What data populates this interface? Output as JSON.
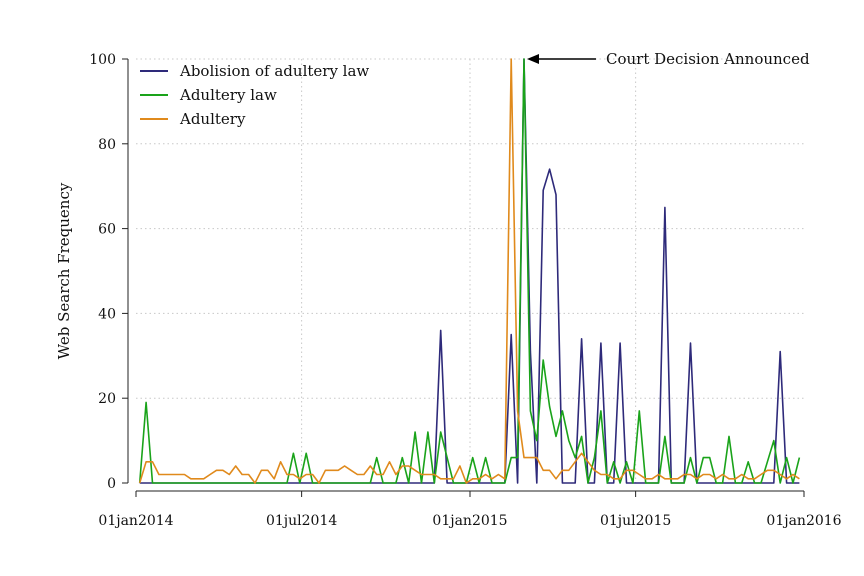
{
  "chart_data": {
    "type": "line",
    "title": "",
    "xlabel": "",
    "ylabel": "Web Search Frequency",
    "xlim": [
      "2014-01-01",
      "2016-01-01"
    ],
    "ylim": [
      0,
      100
    ],
    "x_ticks": [
      "01jan2014",
      "01jul2014",
      "01jan2015",
      "01jul2015",
      "01jan2016"
    ],
    "y_ticks": [
      0,
      20,
      40,
      60,
      80,
      100
    ],
    "grid": true,
    "legend_position": "top-left",
    "x": [
      "2014-01-05",
      "2014-01-12",
      "2014-01-19",
      "2014-01-26",
      "2014-02-02",
      "2014-02-09",
      "2014-02-16",
      "2014-02-23",
      "2014-03-02",
      "2014-03-09",
      "2014-03-16",
      "2014-03-23",
      "2014-03-30",
      "2014-04-06",
      "2014-04-13",
      "2014-04-20",
      "2014-04-27",
      "2014-05-04",
      "2014-05-11",
      "2014-05-18",
      "2014-05-25",
      "2014-06-01",
      "2014-06-08",
      "2014-06-15",
      "2014-06-22",
      "2014-06-29",
      "2014-07-06",
      "2014-07-13",
      "2014-07-20",
      "2014-07-27",
      "2014-08-03",
      "2014-08-10",
      "2014-08-17",
      "2014-08-24",
      "2014-08-31",
      "2014-09-07",
      "2014-09-14",
      "2014-09-21",
      "2014-09-28",
      "2014-10-05",
      "2014-10-12",
      "2014-10-19",
      "2014-10-26",
      "2014-11-02",
      "2014-11-09",
      "2014-11-16",
      "2014-11-23",
      "2014-11-30",
      "2014-12-07",
      "2014-12-14",
      "2014-12-21",
      "2014-12-28",
      "2015-01-04",
      "2015-01-11",
      "2015-01-18",
      "2015-01-25",
      "2015-02-01",
      "2015-02-08",
      "2015-02-15",
      "2015-02-22",
      "2015-03-01",
      "2015-03-08",
      "2015-03-15",
      "2015-03-22",
      "2015-03-29",
      "2015-04-05",
      "2015-04-12",
      "2015-04-19",
      "2015-04-26",
      "2015-05-03",
      "2015-05-10",
      "2015-05-17",
      "2015-05-24",
      "2015-05-31",
      "2015-06-07",
      "2015-06-14",
      "2015-06-21",
      "2015-06-28",
      "2015-07-05",
      "2015-07-12",
      "2015-07-19",
      "2015-07-26",
      "2015-08-02",
      "2015-08-09",
      "2015-08-16",
      "2015-08-23",
      "2015-08-30",
      "2015-09-06",
      "2015-09-13",
      "2015-09-20",
      "2015-09-27",
      "2015-10-04",
      "2015-10-11",
      "2015-10-18",
      "2015-10-25",
      "2015-11-01",
      "2015-11-08",
      "2015-11-15",
      "2015-11-22",
      "2015-11-29",
      "2015-12-06",
      "2015-12-13",
      "2015-12-20",
      "2015-12-27"
    ],
    "series": [
      {
        "name": "Abolision of adultery law",
        "color": "#2e2a7a",
        "values": [
          0,
          0,
          0,
          0,
          0,
          0,
          0,
          0,
          0,
          0,
          0,
          0,
          0,
          0,
          0,
          0,
          0,
          0,
          0,
          0,
          0,
          0,
          0,
          0,
          0,
          0,
          0,
          0,
          0,
          0,
          0,
          0,
          0,
          0,
          0,
          0,
          0,
          0,
          0,
          0,
          0,
          0,
          0,
          0,
          0,
          0,
          0,
          36,
          0,
          0,
          0,
          0,
          0,
          0,
          0,
          0,
          0,
          0,
          35,
          0,
          100,
          31,
          0,
          69,
          74,
          68,
          0,
          0,
          0,
          34,
          0,
          0,
          33,
          0,
          0,
          33,
          0,
          0,
          0,
          0,
          0,
          0,
          65,
          0,
          0,
          0,
          33,
          0,
          0,
          0,
          0,
          0,
          0,
          0,
          0,
          0,
          0,
          0,
          0,
          0,
          31,
          0,
          0,
          0
        ]
      },
      {
        "name": "Adultery law",
        "color": "#1aa31a",
        "values": [
          0,
          19,
          0,
          0,
          0,
          0,
          0,
          0,
          0,
          0,
          0,
          0,
          0,
          0,
          0,
          0,
          0,
          0,
          0,
          0,
          0,
          0,
          0,
          0,
          7,
          0,
          7,
          0,
          0,
          0,
          0,
          0,
          0,
          0,
          0,
          0,
          0,
          6,
          0,
          0,
          0,
          6,
          0,
          12,
          0,
          12,
          0,
          12,
          6,
          0,
          0,
          0,
          6,
          0,
          6,
          0,
          0,
          0,
          6,
          6,
          100,
          17,
          10,
          29,
          18,
          11,
          17,
          10,
          6,
          11,
          0,
          6,
          17,
          0,
          5,
          0,
          5,
          0,
          17,
          0,
          0,
          0,
          11,
          0,
          0,
          0,
          6,
          0,
          6,
          6,
          0,
          0,
          11,
          0,
          0,
          5,
          0,
          0,
          5,
          10,
          0,
          6,
          0,
          6
        ]
      },
      {
        "name": "Adultery",
        "color": "#e08a1c",
        "values": [
          0,
          5,
          5,
          2,
          2,
          2,
          2,
          2,
          1,
          1,
          1,
          2,
          3,
          3,
          2,
          4,
          2,
          2,
          0,
          3,
          3,
          1,
          5,
          2,
          2,
          1,
          2,
          2,
          0,
          3,
          3,
          3,
          4,
          3,
          2,
          2,
          4,
          2,
          2,
          5,
          2,
          4,
          4,
          3,
          2,
          2,
          2,
          1,
          1,
          1,
          4,
          0,
          1,
          1,
          2,
          1,
          2,
          1,
          100,
          17,
          6,
          6,
          6,
          3,
          3,
          1,
          3,
          3,
          5,
          7,
          5,
          3,
          2,
          2,
          1,
          1,
          3,
          3,
          2,
          1,
          1,
          2,
          1,
          1,
          1,
          2,
          2,
          1,
          2,
          2,
          1,
          2,
          1,
          1,
          2,
          1,
          1,
          2,
          3,
          3,
          2,
          1,
          2,
          1
        ]
      }
    ],
    "annotation": {
      "text": "Court Decision Announced",
      "x": "2015-03-01",
      "y": 100
    }
  }
}
